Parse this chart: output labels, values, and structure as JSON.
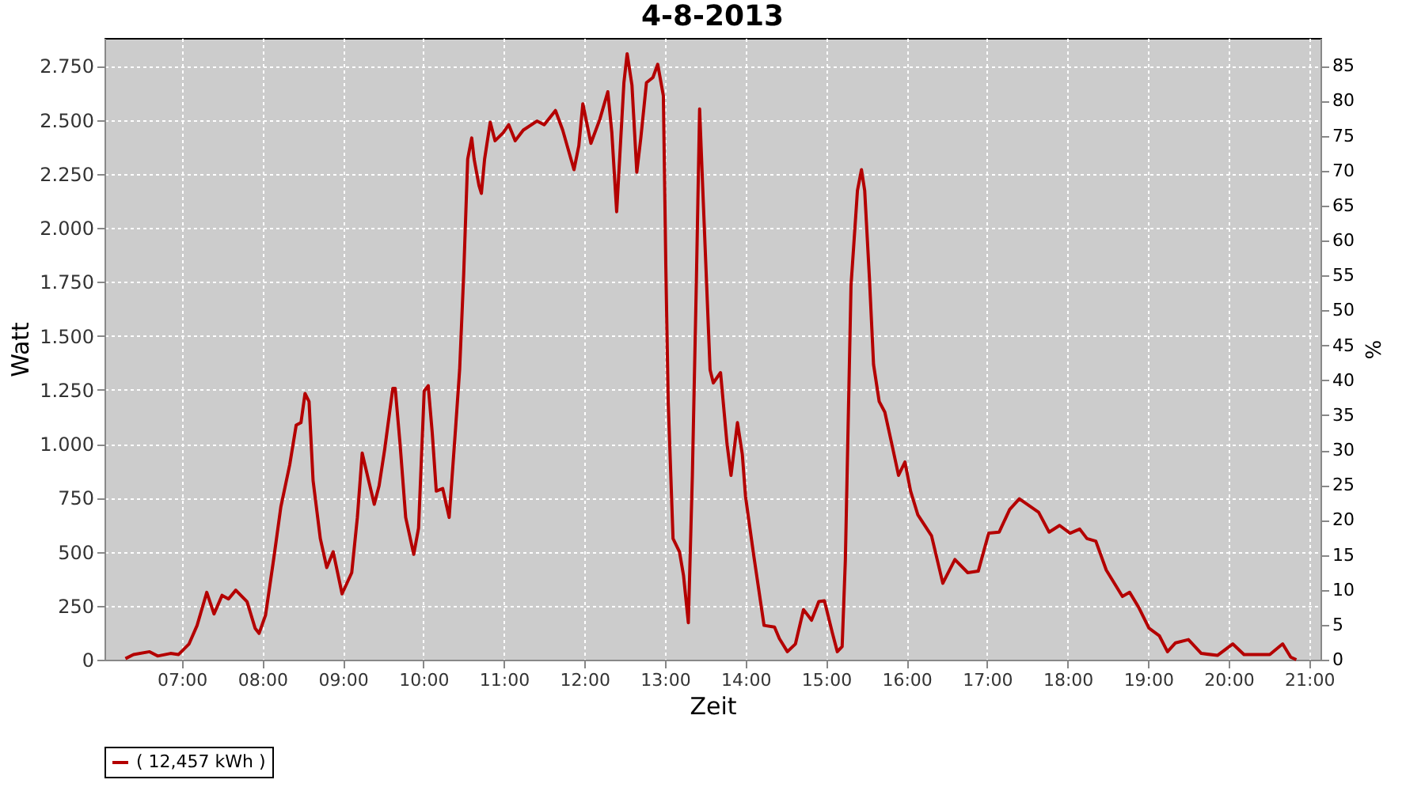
{
  "chart_data": {
    "type": "line",
    "title": "4-8-2013",
    "xlabel": "Zeit",
    "ylabel": "Watt",
    "y2label": "%",
    "xlim": [
      6.04,
      21.14
    ],
    "xticks": [
      {
        "value": 7,
        "label": "07:00"
      },
      {
        "value": 8,
        "label": "08:00"
      },
      {
        "value": 9,
        "label": "09:00"
      },
      {
        "value": 10,
        "label": "10:00"
      },
      {
        "value": 11,
        "label": "11:00"
      },
      {
        "value": 12,
        "label": "12:00"
      },
      {
        "value": 13,
        "label": "13:00"
      },
      {
        "value": 14,
        "label": "14:00"
      },
      {
        "value": 15,
        "label": "15:00"
      },
      {
        "value": 16,
        "label": "16:00"
      },
      {
        "value": 17,
        "label": "17:00"
      },
      {
        "value": 18,
        "label": "18:00"
      },
      {
        "value": 19,
        "label": "19:00"
      },
      {
        "value": 20,
        "label": "20:00"
      },
      {
        "value": 21,
        "label": "21:00"
      }
    ],
    "ylim": [
      0,
      2880
    ],
    "yticks": [
      0,
      250,
      500,
      750,
      {
        "value": 1000,
        "label": "1.000"
      },
      {
        "value": 1250,
        "label": "1.250"
      },
      {
        "value": 1500,
        "label": "1.500"
      },
      {
        "value": 1750,
        "label": "1.750"
      },
      {
        "value": 2000,
        "label": "2.000"
      },
      {
        "value": 2250,
        "label": "2.250"
      },
      {
        "value": 2500,
        "label": "2.500"
      },
      {
        "value": 2750,
        "label": "2.750"
      }
    ],
    "y2lim": [
      0,
      89
    ],
    "y2ticks": [
      0,
      5,
      10,
      15,
      20,
      25,
      30,
      35,
      40,
      45,
      50,
      55,
      60,
      65,
      70,
      75,
      80,
      85
    ],
    "grid": true,
    "legend": "bottom",
    "marker": "none",
    "line_style": "solid",
    "x": [
      6.3,
      6.4,
      6.6,
      6.7,
      6.86,
      6.96,
      7.09,
      7.19,
      7.31,
      7.4,
      7.5,
      7.58,
      7.67,
      7.81,
      7.91,
      7.96,
      8.04,
      8.14,
      8.23,
      8.34,
      8.42,
      8.48,
      8.53,
      8.58,
      8.63,
      8.72,
      8.8,
      8.88,
      8.99,
      9.11,
      9.18,
      9.24,
      9.32,
      9.39,
      9.45,
      9.52,
      9.62,
      9.65,
      9.71,
      9.78,
      9.88,
      9.94,
      10.01,
      10.06,
      10.11,
      10.16,
      10.24,
      10.32,
      10.4,
      10.45,
      10.5,
      10.55,
      10.6,
      10.63,
      10.69,
      10.72,
      10.76,
      10.83,
      10.89,
      10.99,
      11.06,
      11.14,
      11.24,
      11.41,
      11.5,
      11.64,
      11.73,
      11.87,
      11.93,
      11.98,
      12.08,
      12.19,
      12.29,
      12.34,
      12.4,
      12.49,
      12.53,
      12.59,
      12.65,
      12.7,
      12.77,
      12.85,
      12.91,
      12.98,
      13.01,
      13.04,
      13.1,
      13.18,
      13.23,
      13.29,
      13.34,
      13.39,
      13.43,
      13.47,
      13.56,
      13.6,
      13.69,
      13.77,
      13.82,
      13.9,
      13.96,
      14.0,
      14.1,
      14.23,
      14.36,
      14.42,
      14.52,
      14.62,
      14.72,
      14.82,
      14.91,
      14.98,
      15.08,
      15.14,
      15.2,
      15.24,
      15.31,
      15.39,
      15.44,
      15.48,
      15.54,
      15.59,
      15.66,
      15.73,
      15.83,
      15.9,
      15.98,
      16.05,
      16.14,
      16.31,
      16.45,
      16.6,
      16.76,
      16.89,
      17.02,
      17.15,
      17.28,
      17.4,
      17.64,
      17.77,
      17.9,
      18.03,
      18.15,
      18.24,
      18.35,
      18.48,
      18.68,
      18.77,
      18.88,
      19.01,
      19.14,
      19.24,
      19.34,
      19.5,
      19.66,
      19.86,
      20.05,
      20.19,
      20.51,
      20.67,
      20.77,
      20.84
    ],
    "series": [
      {
        "name": "( 12,457 kWh )",
        "color": "#b40000",
        "values": [
          5,
          24,
          37,
          17,
          29,
          24,
          73,
          159,
          312,
          212,
          298,
          281,
          322,
          269,
          146,
          122,
          207,
          464,
          708,
          903,
          1086,
          1098,
          1233,
          1196,
          830,
          561,
          427,
          500,
          305,
          403,
          659,
          957,
          830,
          720,
          806,
          976,
          1257,
          1257,
          1001,
          659,
          488,
          610,
          1245,
          1269,
          1050,
          781,
          793,
          659,
          1074,
          1343,
          1782,
          2319,
          2417,
          2319,
          2197,
          2160,
          2319,
          2490,
          2404,
          2441,
          2478,
          2404,
          2453,
          2495,
          2478,
          2544,
          2453,
          2270,
          2380,
          2575,
          2392,
          2502,
          2631,
          2441,
          2075,
          2673,
          2807,
          2661,
          2258,
          2417,
          2673,
          2697,
          2758,
          2612,
          1831,
          1196,
          561,
          500,
          391,
          171,
          854,
          1758,
          2551,
          2173,
          1343,
          1282,
          1330,
          1001,
          854,
          1098,
          952,
          757,
          488,
          159,
          151,
          98,
          37,
          73,
          232,
          183,
          269,
          273,
          122,
          37,
          61,
          464,
          1733,
          2173,
          2270,
          2173,
          1758,
          1367,
          1196,
          1147,
          976,
          854,
          916,
          781,
          671,
          574,
          354,
          464,
          403,
          410,
          586,
          591,
          696,
          745,
          683,
          591,
          622,
          586,
          605,
          561,
          549,
          415,
          293,
          312,
          244,
          146,
          110,
          37,
          78,
          93,
          29,
          20,
          73,
          24,
          24,
          73,
          12,
          0
        ]
      }
    ]
  }
}
